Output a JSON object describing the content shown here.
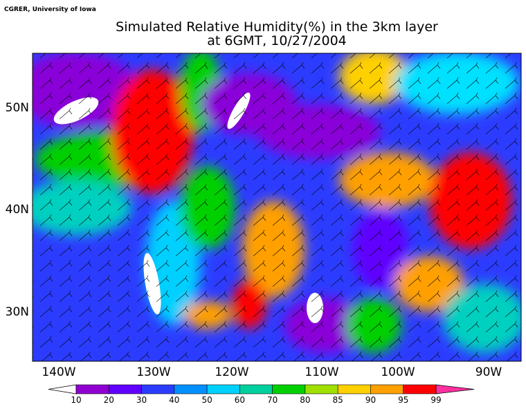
{
  "header": {
    "credit": "CGRER, University of Iowa",
    "title_line1": "Simulated Relative Humidity(%) in the 3km layer",
    "title_line2": "at 6GMT, 10/27/2004"
  },
  "map": {
    "lat_labels": [
      "50N",
      "40N",
      "30N"
    ],
    "lon_labels": [
      "140W",
      "130W",
      "120W",
      "110W",
      "100W",
      "90W"
    ]
  },
  "colorbar": {
    "levels": [
      10,
      20,
      30,
      40,
      50,
      60,
      70,
      80,
      85,
      90,
      95,
      99
    ],
    "colors": [
      "#9000d0",
      "#6000ff",
      "#2c3cff",
      "#0090ff",
      "#00d0ff",
      "#00d0a0",
      "#00d000",
      "#a0e000",
      "#ffd000",
      "#ffa000",
      "#ff0000"
    ],
    "under_color": "#ffffff",
    "over_color": "#ff30a0"
  }
}
